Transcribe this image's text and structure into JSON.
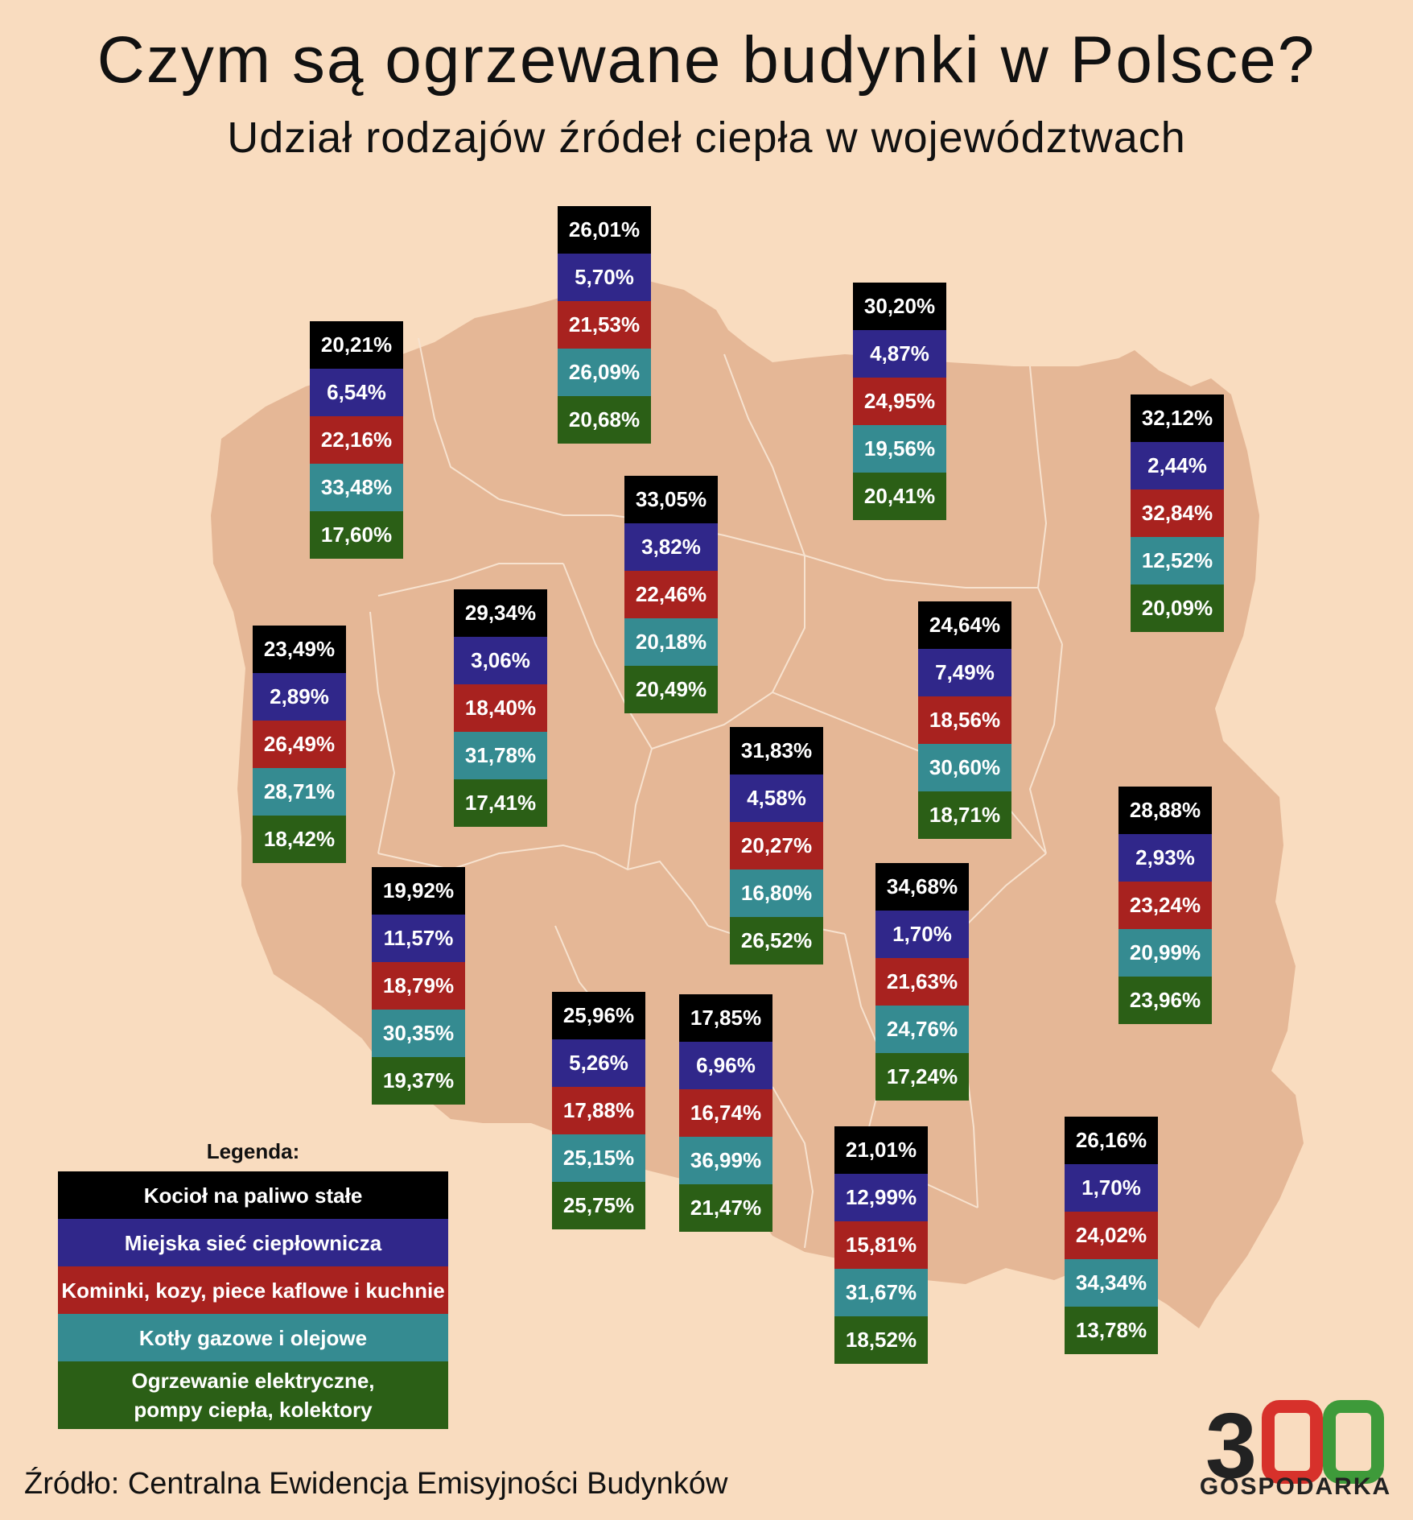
{
  "title": "Czym są ogrzewane budynki w Polsce?",
  "subtitle": "Udział rodzajów źródeł ciepła w województwach",
  "colors": {
    "background": "#f9dcbf",
    "map_fill": "#e5b796",
    "border": "#f7e2cf",
    "series": [
      "#000000",
      "#30278a",
      "#a8221f",
      "#358b91",
      "#2b5f16"
    ]
  },
  "legend": {
    "title": "Legenda:",
    "items": [
      "Kocioł na paliwo stałe",
      "Miejska sieć ciepłownicza",
      "Kominki, kozy, piece kaflowe i kuchnie",
      "Kotły gazowe i olejowe",
      "Ogrzewanie elektryczne,\npompy ciepła, kolektory"
    ]
  },
  "source": "Źródło: Centralna Ewidencja Emisyjności Budynków",
  "logo": {
    "number": "300",
    "name": "GOSPODARKA"
  },
  "stacks": [
    {
      "id": "pomorskie",
      "values": [
        "26,01%",
        "5,70%",
        "21,53%",
        "26,09%",
        "20,68%"
      ]
    },
    {
      "id": "zachodniopomorskie",
      "values": [
        "20,21%",
        "6,54%",
        "22,16%",
        "33,48%",
        "17,60%"
      ]
    },
    {
      "id": "warminsko-mazurskie",
      "values": [
        "30,20%",
        "4,87%",
        "24,95%",
        "19,56%",
        "20,41%"
      ]
    },
    {
      "id": "podlaskie",
      "values": [
        "32,12%",
        "2,44%",
        "32,84%",
        "12,52%",
        "20,09%"
      ]
    },
    {
      "id": "kujawsko-pomorskie",
      "values": [
        "33,05%",
        "3,82%",
        "22,46%",
        "20,18%",
        "20,49%"
      ]
    },
    {
      "id": "wielkopolskie",
      "values": [
        "29,34%",
        "3,06%",
        "18,40%",
        "31,78%",
        "17,41%"
      ]
    },
    {
      "id": "lubuskie",
      "values": [
        "23,49%",
        "2,89%",
        "26,49%",
        "28,71%",
        "18,42%"
      ]
    },
    {
      "id": "mazowieckie",
      "values": [
        "24,64%",
        "7,49%",
        "18,56%",
        "30,60%",
        "18,71%"
      ]
    },
    {
      "id": "lodzkie",
      "values": [
        "31,83%",
        "4,58%",
        "20,27%",
        "16,80%",
        "26,52%"
      ]
    },
    {
      "id": "lubelskie",
      "values": [
        "28,88%",
        "2,93%",
        "23,24%",
        "20,99%",
        "23,96%"
      ]
    },
    {
      "id": "dolnoslaskie",
      "values": [
        "19,92%",
        "11,57%",
        "18,79%",
        "30,35%",
        "19,37%"
      ]
    },
    {
      "id": "swietokrzyskie",
      "values": [
        "34,68%",
        "1,70%",
        "21,63%",
        "24,76%",
        "17,24%"
      ]
    },
    {
      "id": "opolskie",
      "values": [
        "25,96%",
        "5,26%",
        "17,88%",
        "25,15%",
        "25,75%"
      ]
    },
    {
      "id": "slaskie",
      "values": [
        "17,85%",
        "6,96%",
        "16,74%",
        "36,99%",
        "21,47%"
      ]
    },
    {
      "id": "malopolskie",
      "values": [
        "21,01%",
        "12,99%",
        "15,81%",
        "31,67%",
        "18,52%"
      ]
    },
    {
      "id": "podkarpackie",
      "values": [
        "26,16%",
        "1,70%",
        "24,02%",
        "34,34%",
        "13,78%"
      ]
    }
  ]
}
